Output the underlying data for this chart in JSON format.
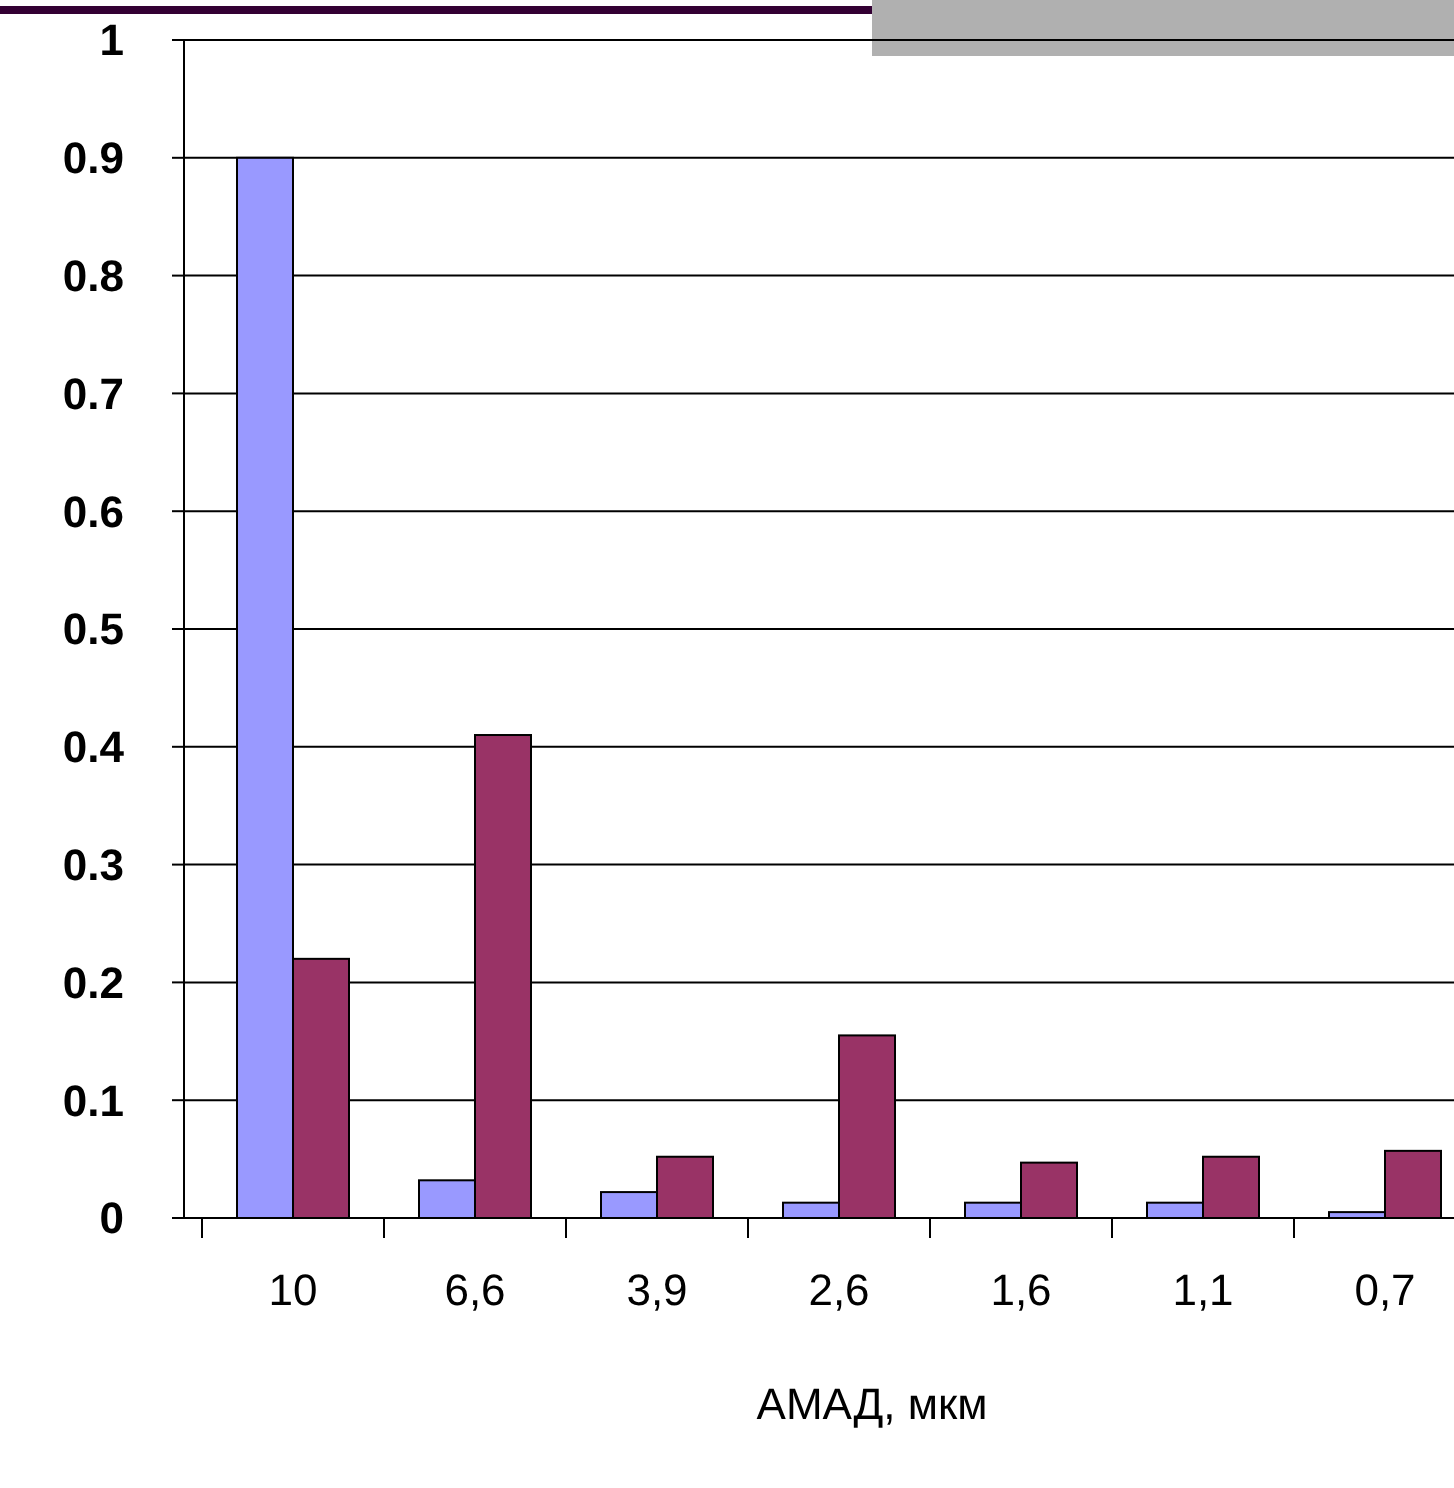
{
  "chart_data": {
    "type": "bar",
    "xlabel": "АМАД, мкм",
    "categories": [
      "10",
      "6,6",
      "3,9",
      "2,6",
      "1,6",
      "1,1",
      "0,7"
    ],
    "series": [
      {
        "color": "#9999ff",
        "values": [
          0.9,
          0.032,
          0.022,
          0.013,
          0.013,
          0.013,
          0.005
        ]
      },
      {
        "color": "#993366",
        "values": [
          0.22,
          0.41,
          0.052,
          0.155,
          0.047,
          0.052,
          0.057
        ]
      }
    ],
    "ylim": [
      0,
      1
    ],
    "yticks": [
      0,
      0.1,
      0.2,
      0.3,
      0.4,
      0.5,
      0.6,
      0.7,
      0.8,
      0.9,
      1
    ],
    "grid": "y"
  }
}
